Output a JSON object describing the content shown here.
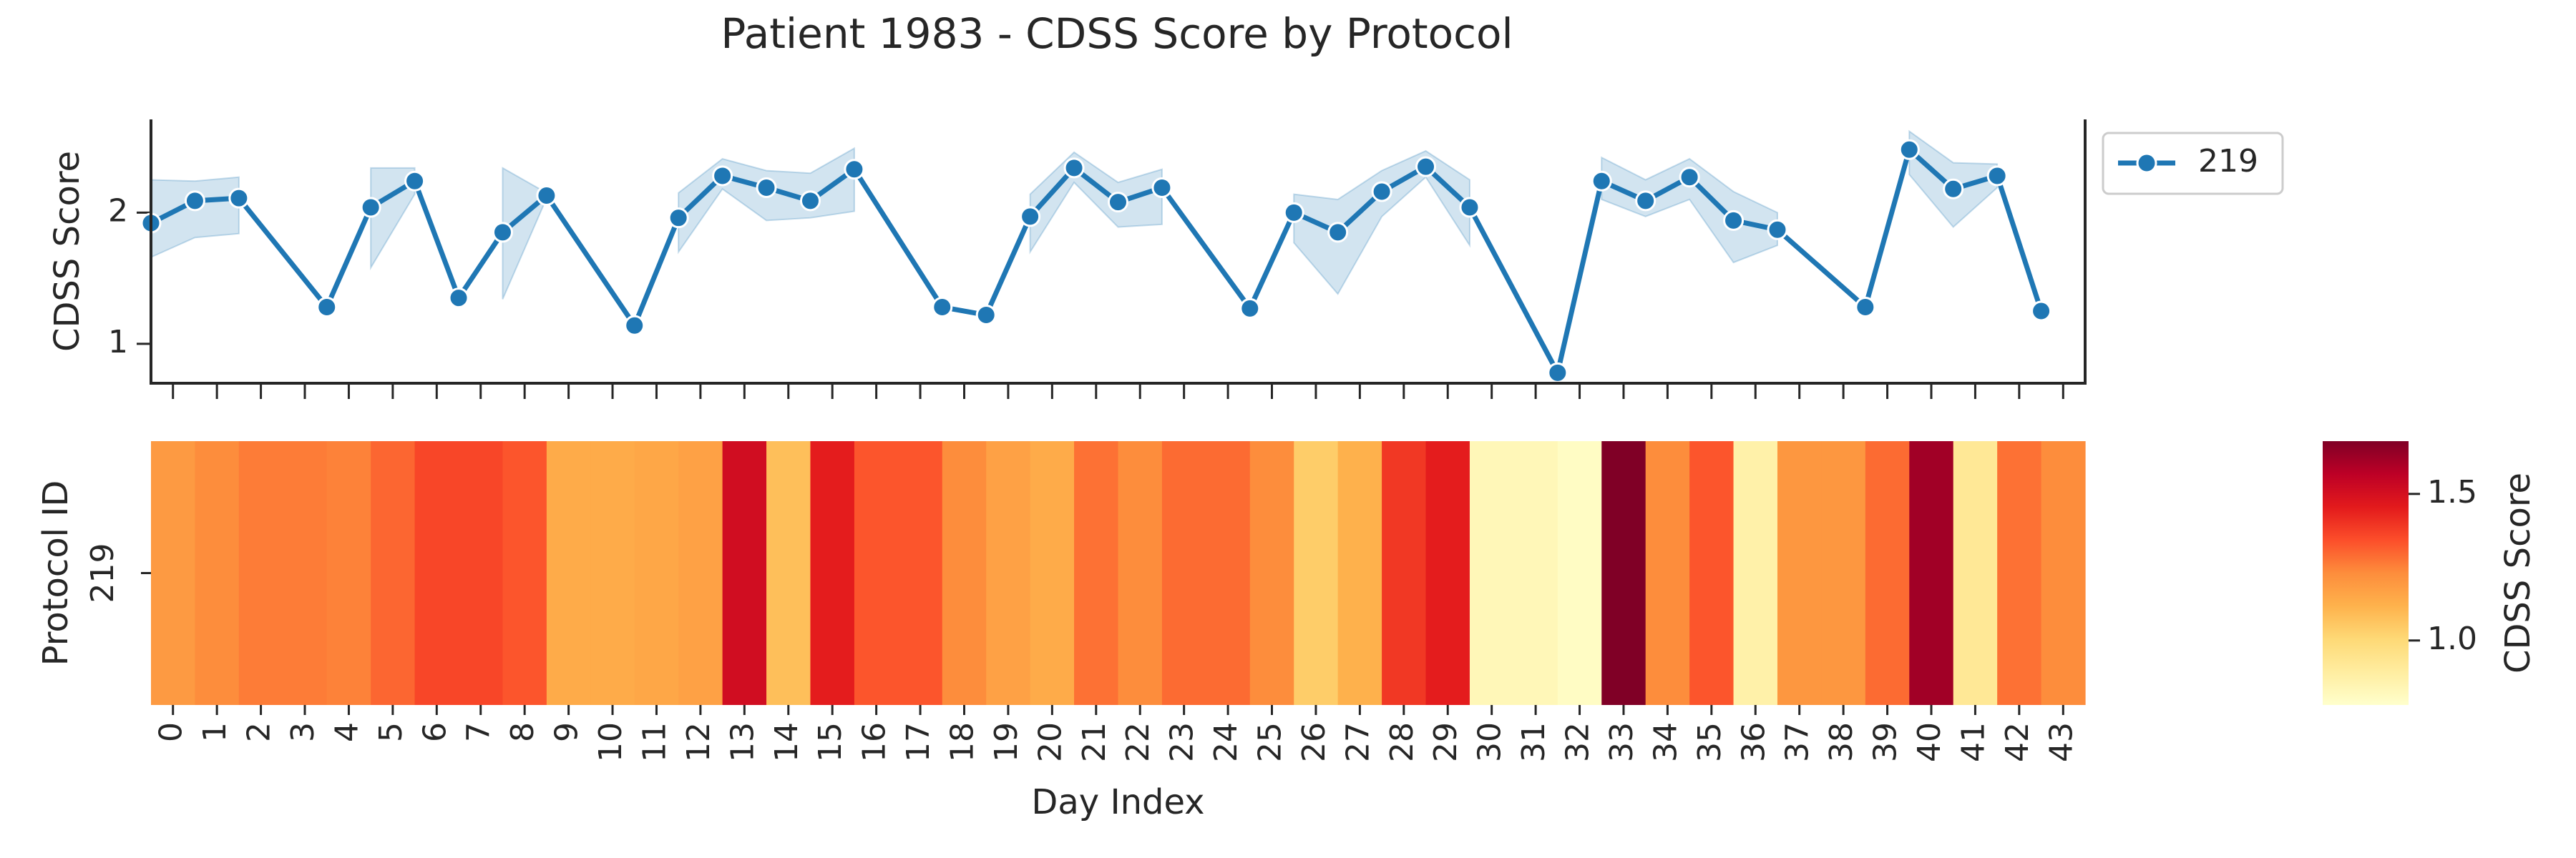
{
  "title": "Patient 1983 - CDSS Score by Protocol",
  "chart_data": [
    {
      "type": "line",
      "ylabel": "CDSS Score",
      "x": [
        -0.5,
        0.5,
        1.5,
        3.5,
        4.5,
        5.5,
        6.5,
        7.5,
        8.5,
        10.5,
        11.5,
        12.5,
        13.5,
        14.5,
        15.5,
        17.5,
        18.5,
        19.5,
        20.5,
        21.5,
        22.5,
        24.5,
        25.5,
        26.5,
        27.5,
        28.5,
        29.5,
        31.5,
        32.5,
        33.5,
        34.5,
        35.5,
        36.5,
        38.5,
        39.5,
        40.5,
        41.5,
        42.5
      ],
      "series": [
        {
          "name": "219",
          "color": "#1f77b4",
          "values": [
            1.92,
            2.09,
            2.11,
            1.28,
            2.04,
            2.24,
            1.35,
            1.85,
            2.13,
            1.14,
            1.96,
            2.28,
            2.19,
            2.09,
            2.33,
            1.28,
            1.22,
            1.97,
            2.34,
            2.08,
            2.19,
            1.27,
            2.0,
            1.85,
            2.16,
            2.35,
            2.04,
            0.78,
            2.24,
            2.09,
            2.27,
            1.94,
            1.87,
            1.28,
            2.48,
            2.18,
            2.28,
            1.25
          ],
          "ci_lower": [
            1.66,
            1.81,
            1.84,
            null,
            1.58,
            2.14,
            null,
            1.34,
            2.11,
            null,
            1.7,
            2.18,
            1.94,
            1.96,
            2.01,
            null,
            null,
            1.7,
            2.23,
            1.89,
            1.91,
            null,
            1.77,
            1.38,
            1.97,
            2.27,
            1.75,
            null,
            2.1,
            1.97,
            2.1,
            1.62,
            1.75,
            null,
            2.29,
            1.89,
            2.19,
            null
          ],
          "ci_upper": [
            2.25,
            2.24,
            2.27,
            null,
            2.34,
            2.34,
            null,
            2.34,
            2.15,
            null,
            2.15,
            2.41,
            2.32,
            2.3,
            2.49,
            null,
            null,
            2.14,
            2.46,
            2.23,
            2.33,
            null,
            2.14,
            2.1,
            2.32,
            2.47,
            2.25,
            null,
            2.42,
            2.25,
            2.41,
            2.16,
            2.0,
            null,
            2.62,
            2.38,
            2.37,
            null
          ],
          "band_color": "#1f77b4"
        }
      ],
      "xlim": [
        -0.5,
        43.5
      ],
      "xticks": [
        0,
        1,
        2,
        3,
        4,
        5,
        6,
        7,
        8,
        9,
        10,
        11,
        12,
        13,
        14,
        15,
        16,
        17,
        18,
        19,
        20,
        21,
        22,
        23,
        24,
        25,
        26,
        27,
        28,
        29,
        30,
        31,
        32,
        33,
        34,
        35,
        36,
        37,
        38,
        39,
        40,
        41,
        42,
        43
      ],
      "show_xticklabels": false,
      "ylim": [
        0.7,
        2.71
      ],
      "yticks": [
        1,
        2
      ],
      "legend": "outside-upper-right"
    },
    {
      "type": "heatmap",
      "xlabel": "Day Index",
      "ylabel": "Protocol ID",
      "categories": [
        "0",
        "1",
        "2",
        "3",
        "4",
        "5",
        "6",
        "7",
        "8",
        "9",
        "10",
        "11",
        "12",
        "13",
        "14",
        "15",
        "16",
        "17",
        "18",
        "19",
        "20",
        "21",
        "22",
        "23",
        "24",
        "25",
        "26",
        "27",
        "28",
        "29",
        "30",
        "31",
        "32",
        "33",
        "34",
        "35",
        "36",
        "37",
        "38",
        "39",
        "40",
        "41",
        "42",
        "43"
      ],
      "rows": [
        "219"
      ],
      "values": [
        [
          1.19,
          1.23,
          1.26,
          1.26,
          1.25,
          1.3,
          1.36,
          1.36,
          1.33,
          1.14,
          1.14,
          1.15,
          1.17,
          1.51,
          1.08,
          1.45,
          1.33,
          1.33,
          1.23,
          1.17,
          1.14,
          1.28,
          1.23,
          1.29,
          1.29,
          1.23,
          1.04,
          1.12,
          1.39,
          1.45,
          0.83,
          0.83,
          0.8,
          1.68,
          1.23,
          1.33,
          0.87,
          1.2,
          1.2,
          1.29,
          1.62,
          0.92,
          1.28,
          1.23
        ]
      ],
      "colormap": [
        "#ffffcc",
        "#ffeda0",
        "#fed976",
        "#feb24c",
        "#fd8d3c",
        "#fc4e2a",
        "#e31a1c",
        "#bd0026",
        "#800026"
      ],
      "clim": [
        0.78,
        1.68
      ],
      "colorbar_label": "CDSS Score",
      "cticks": [
        {
          "value": 1.0,
          "label": "1.0"
        },
        {
          "value": 1.5,
          "label": "1.5"
        }
      ]
    }
  ]
}
